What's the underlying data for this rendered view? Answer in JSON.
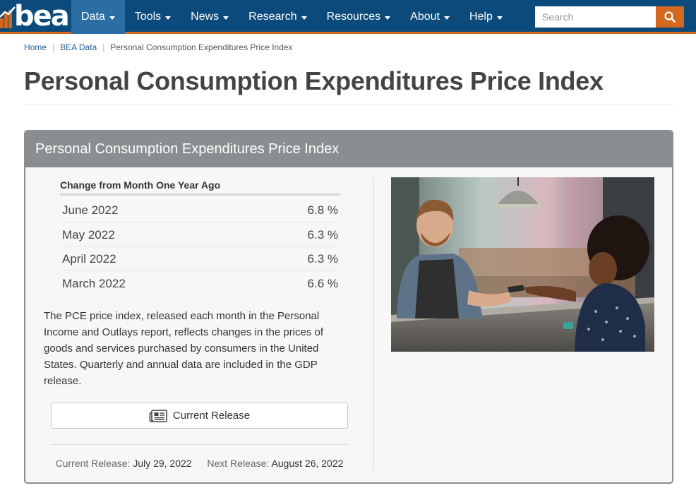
{
  "nav": {
    "logo_text": "bea",
    "items": [
      {
        "label": "Data",
        "active": true
      },
      {
        "label": "Tools",
        "active": false
      },
      {
        "label": "News",
        "active": false
      },
      {
        "label": "Research",
        "active": false
      },
      {
        "label": "Resources",
        "active": false
      },
      {
        "label": "About",
        "active": false
      },
      {
        "label": "Help",
        "active": false
      }
    ],
    "search_placeholder": "Search",
    "search_icon": "search-icon"
  },
  "breadcrumb": {
    "items": [
      "Home",
      "BEA Data",
      "Personal Consumption Expenditures Price Index"
    ]
  },
  "page_title": "Personal Consumption Expenditures Price Index",
  "panel": {
    "heading": "Personal Consumption Expenditures Price Index",
    "table": {
      "header": "Change from Month One Year Ago",
      "rows": [
        {
          "month": "June 2022",
          "value": "6.8 %"
        },
        {
          "month": "May 2022",
          "value": "6.3 %"
        },
        {
          "month": "April 2022",
          "value": "6.3 %"
        },
        {
          "month": "March 2022",
          "value": "6.6 %"
        }
      ]
    },
    "description": "The PCE price index, released each month in the Personal Income and Outlays report, reflects changes in the prices of goods and services purchased by consumers in the United States. Quarterly and annual data are included in the GDP release.",
    "release_button": "Current Release",
    "release_icon": "newspaper-icon",
    "current_release_label": "Current Release:",
    "current_release_date": "July 29, 2022",
    "next_release_label": "Next Release:",
    "next_release_date": "August 26, 2022"
  },
  "colors": {
    "navbar": "#0b4a7a",
    "nav_active": "#2b6ea3",
    "accent": "#d2691e",
    "panel_header": "#8a8e90"
  }
}
